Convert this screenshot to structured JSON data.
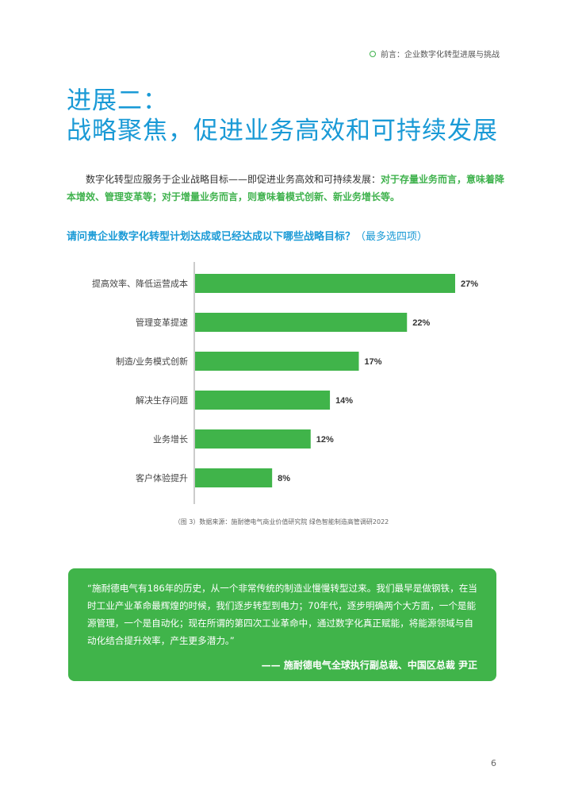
{
  "header": {
    "text": "前言：企业数字化转型进展与挑战"
  },
  "title": {
    "line1": "进展二：",
    "line2": "战略聚焦，促进业务高效和可持续发展"
  },
  "intro": {
    "normal": "数字化转型应服务于企业战略目标——即促进业务高效和可持续发展：",
    "highlight": "对于存量业务而言，意味着降本增效、管理变革等；对于增量业务而言，则意味着模式创新、新业务增长等。"
  },
  "question": {
    "main": "请问贵企业数字化转型计划达成或已经达成以下哪些战略目标？",
    "note": "（最多选四项）"
  },
  "chart_data": {
    "type": "bar",
    "orientation": "horizontal",
    "categories": [
      "提高效率、降低运营成本",
      "管理变革提速",
      "制造/业务模式创新",
      "解决生存问题",
      "业务增长",
      "客户体验提升"
    ],
    "values": [
      27,
      22,
      17,
      14,
      12,
      8
    ],
    "value_labels": [
      "27%",
      "22%",
      "17%",
      "14%",
      "12%",
      "8%"
    ],
    "bar_color": "#40b44a",
    "xlim": [
      0,
      30
    ]
  },
  "caption": "（图 3）数据来源：施耐德电气商业价值研究院 绿色智能制造高管调研2022",
  "quote": {
    "text": "“施耐德电气有186年的历史，从一个非常传统的制造业慢慢转型过来。我们最早是做钢铁，在当时工业产业革命最辉煌的时候，我们逐步转型到电力；70年代，逐步明确两个大方面，一个是能源管理，一个是自动化；现在所谓的第四次工业革命中，通过数字化真正赋能，将能源领域与自动化结合提升效率，产生更多潜力。”",
    "author": "—— 施耐德电气全球执行副总裁、中国区总裁 尹正",
    "bg_color": "#40b44a"
  },
  "page_number": "6",
  "colors": {
    "accent_blue": "#1a9ad6",
    "accent_green": "#3fb24d"
  }
}
